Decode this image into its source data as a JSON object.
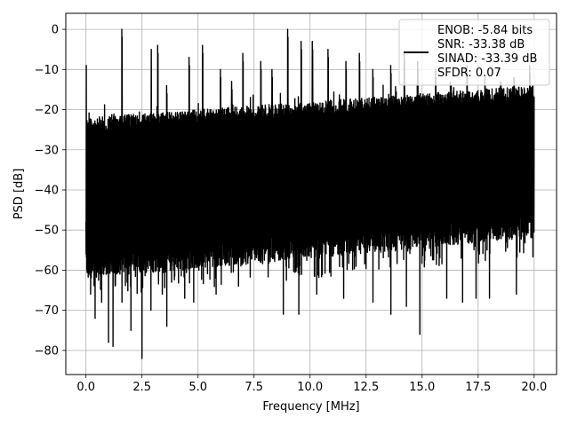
{
  "chart_data": {
    "type": "line",
    "title": "",
    "xlabel": "Frequency [MHz]",
    "ylabel": "PSD [dB]",
    "xlim": [
      -0.9,
      21.0
    ],
    "ylim": [
      -86.0,
      4.0
    ],
    "xticks": [
      0.0,
      2.5,
      5.0,
      7.5,
      10.0,
      12.5,
      15.0,
      17.5,
      20.0
    ],
    "xtick_labels": [
      "0.0",
      "2.5",
      "5.0",
      "7.5",
      "10.0",
      "12.5",
      "15.0",
      "17.5",
      "20.0"
    ],
    "yticks": [
      0,
      -10,
      -20,
      -30,
      -40,
      -50,
      -60,
      -70,
      -80
    ],
    "ytick_labels": [
      "0",
      "−10",
      "−20",
      "−30",
      "−40",
      "−50",
      "−60",
      "−70",
      "−80"
    ],
    "grid": true,
    "legend_position": "top-right",
    "legend_lines": [
      "ENOB: -5.84 bits",
      "SNR: -33.38 dB",
      "SINAD: -33.39 dB",
      "SFDR: 0.07"
    ],
    "line_color": "#000000",
    "x_range": [
      0.0,
      20.0
    ],
    "noise_floor_top_db": [
      -22,
      -14
    ],
    "noise_floor_bottom_db": [
      -62,
      -52
    ],
    "peaks": [
      {
        "x": 0.0,
        "y": -7
      },
      {
        "x": 1.6,
        "y": 0
      },
      {
        "x": 2.9,
        "y": -3
      },
      {
        "x": 3.2,
        "y": -4
      },
      {
        "x": 3.6,
        "y": -14
      },
      {
        "x": 4.6,
        "y": -7
      },
      {
        "x": 5.2,
        "y": -4
      },
      {
        "x": 6.0,
        "y": -10
      },
      {
        "x": 6.5,
        "y": -13
      },
      {
        "x": 7.0,
        "y": -6
      },
      {
        "x": 7.8,
        "y": -8
      },
      {
        "x": 8.3,
        "y": -10
      },
      {
        "x": 9.0,
        "y": 0
      },
      {
        "x": 9.6,
        "y": -3
      },
      {
        "x": 10.1,
        "y": -3
      },
      {
        "x": 10.8,
        "y": -5
      },
      {
        "x": 11.6,
        "y": -8
      },
      {
        "x": 12.2,
        "y": -6
      },
      {
        "x": 12.8,
        "y": -10
      },
      {
        "x": 13.6,
        "y": -9
      },
      {
        "x": 14.2,
        "y": -6
      },
      {
        "x": 14.8,
        "y": -8
      },
      {
        "x": 15.6,
        "y": -10
      },
      {
        "x": 16.3,
        "y": -14
      },
      {
        "x": 17.0,
        "y": -9
      },
      {
        "x": 17.8,
        "y": -12
      },
      {
        "x": 18.5,
        "y": -13
      },
      {
        "x": 19.1,
        "y": -12
      },
      {
        "x": 19.8,
        "y": -9
      }
    ],
    "dips": [
      {
        "x": 0.2,
        "y": -66
      },
      {
        "x": 0.4,
        "y": -72
      },
      {
        "x": 0.7,
        "y": -68
      },
      {
        "x": 1.0,
        "y": -78
      },
      {
        "x": 1.2,
        "y": -79
      },
      {
        "x": 1.6,
        "y": -68
      },
      {
        "x": 2.0,
        "y": -75
      },
      {
        "x": 2.5,
        "y": -82
      },
      {
        "x": 2.9,
        "y": -70
      },
      {
        "x": 3.4,
        "y": -66
      },
      {
        "x": 3.6,
        "y": -74
      },
      {
        "x": 4.4,
        "y": -67
      },
      {
        "x": 4.8,
        "y": -68
      },
      {
        "x": 5.8,
        "y": -66
      },
      {
        "x": 6.8,
        "y": -64
      },
      {
        "x": 8.8,
        "y": -71
      },
      {
        "x": 9.5,
        "y": -71
      },
      {
        "x": 10.3,
        "y": -66
      },
      {
        "x": 11.5,
        "y": -67
      },
      {
        "x": 12.8,
        "y": -68
      },
      {
        "x": 13.6,
        "y": -71
      },
      {
        "x": 14.3,
        "y": -69
      },
      {
        "x": 14.9,
        "y": -76
      },
      {
        "x": 16.1,
        "y": -67
      },
      {
        "x": 16.8,
        "y": -68
      },
      {
        "x": 17.4,
        "y": -67
      },
      {
        "x": 18.0,
        "y": -67
      },
      {
        "x": 19.2,
        "y": -66
      }
    ]
  }
}
